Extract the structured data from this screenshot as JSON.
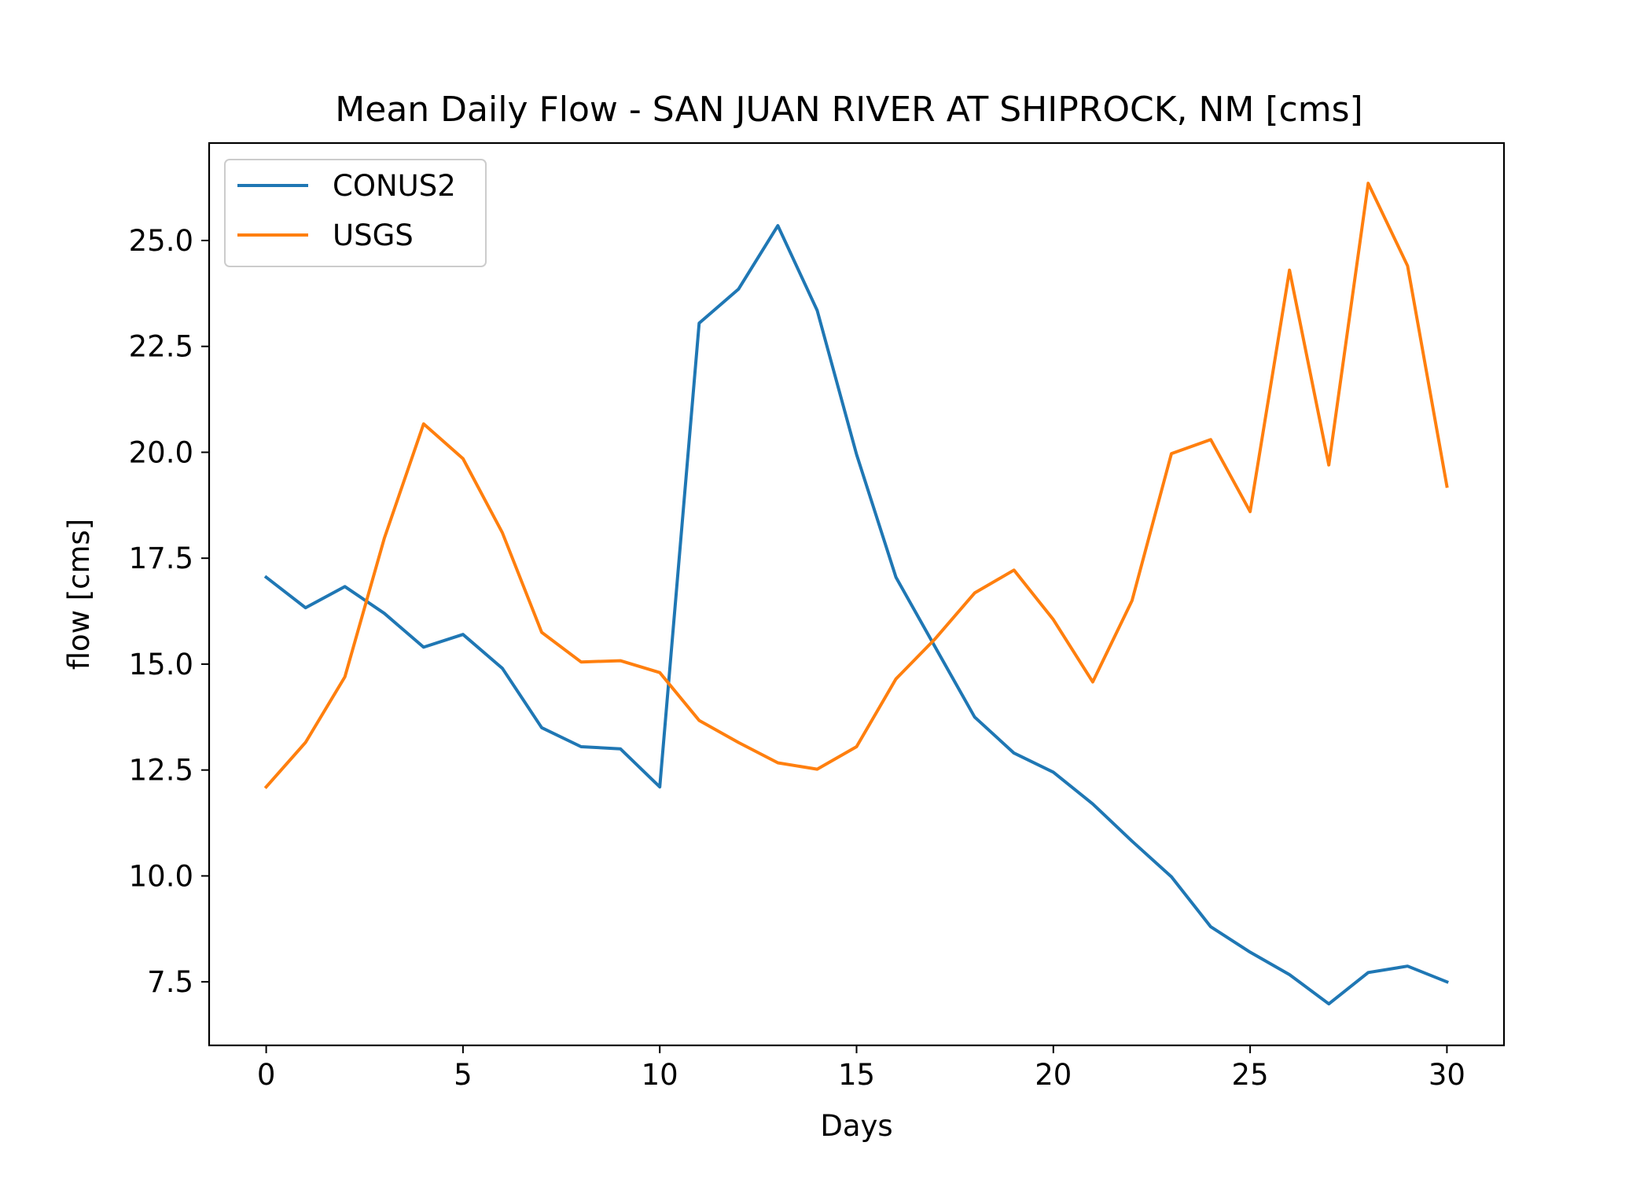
{
  "chart_data": {
    "type": "line",
    "title": "Mean Daily Flow - SAN JUAN RIVER AT SHIPROCK, NM [cms]",
    "xlabel": "Days",
    "ylabel": "flow [cms]",
    "xlim": [
      -1.45,
      31.45
    ],
    "ylim": [
      6.0,
      27.3
    ],
    "xticks": [
      0,
      5,
      10,
      15,
      20,
      25,
      30
    ],
    "xtick_labels": [
      "0",
      "5",
      "10",
      "15",
      "20",
      "25",
      "30"
    ],
    "yticks": [
      7.5,
      10.0,
      12.5,
      15.0,
      17.5,
      20.0,
      22.5,
      25.0
    ],
    "ytick_labels": [
      "7.5",
      "10.0",
      "12.5",
      "15.0",
      "17.5",
      "20.0",
      "22.5",
      "25.0"
    ],
    "grid": false,
    "legend_position": "upper-left",
    "x": [
      0,
      1,
      2,
      3,
      4,
      5,
      6,
      7,
      8,
      9,
      10,
      11,
      12,
      13,
      14,
      15,
      16,
      17,
      18,
      19,
      20,
      21,
      22,
      23,
      24,
      25,
      26,
      27,
      28,
      29,
      30
    ],
    "series": [
      {
        "name": "CONUS2",
        "color": "#1f77b4",
        "values": [
          17.05,
          16.33,
          16.83,
          16.2,
          15.4,
          15.7,
          14.9,
          13.5,
          13.05,
          13.0,
          12.1,
          23.05,
          23.85,
          25.35,
          23.35,
          19.95,
          17.05,
          15.4,
          13.75,
          12.9,
          12.45,
          11.7,
          10.82,
          9.98,
          8.8,
          8.2,
          7.67,
          6.98,
          7.72,
          7.87,
          7.5
        ]
      },
      {
        "name": "USGS",
        "color": "#ff7f0e",
        "values": [
          12.1,
          13.15,
          14.7,
          17.97,
          20.67,
          19.85,
          18.1,
          15.75,
          15.05,
          15.08,
          14.8,
          13.67,
          13.15,
          12.67,
          12.52,
          13.05,
          14.65,
          15.6,
          16.68,
          17.22,
          16.05,
          14.58,
          16.5,
          19.97,
          20.3,
          18.6,
          24.3,
          19.7,
          26.35,
          24.4,
          19.2
        ]
      }
    ]
  }
}
